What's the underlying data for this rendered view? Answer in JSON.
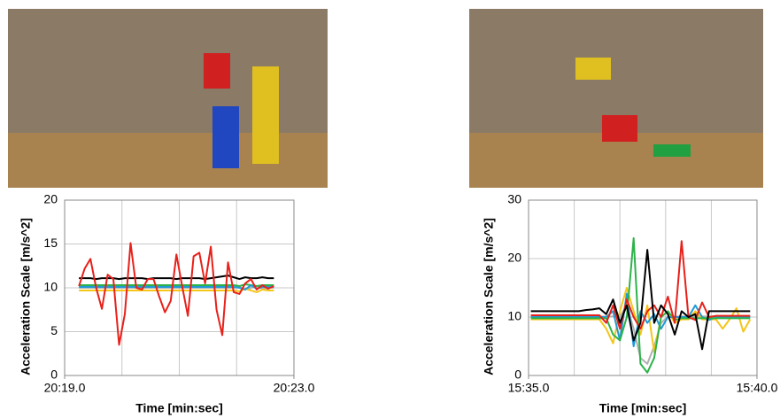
{
  "chart_data": [
    {
      "type": "line",
      "x_label": "Time [min:sec]",
      "y_label": "Acceleration Scale [m/s^2]",
      "x": [
        0.25,
        0.35,
        0.45,
        0.55,
        0.65,
        0.75,
        0.85,
        0.95,
        1.05,
        1.15,
        1.25,
        1.35,
        1.45,
        1.55,
        1.65,
        1.75,
        1.85,
        1.95,
        2.05,
        2.15,
        2.25,
        2.35,
        2.45,
        2.55,
        2.65,
        2.75,
        2.85,
        2.95,
        3.05,
        3.15,
        3.25,
        3.35,
        3.45,
        3.55,
        3.65
      ],
      "xlim": [
        0,
        4
      ],
      "xticks": [
        {
          "value": 0,
          "label": "20:19.0"
        },
        {
          "value": 4,
          "label": "20:23.0"
        }
      ],
      "xgrid": [
        1,
        2,
        3
      ],
      "ylim": [
        0,
        20
      ],
      "yticks": [
        0,
        5,
        10,
        15,
        20
      ],
      "grid": true,
      "series": [
        {
          "color": "#000000",
          "values": [
            11.1,
            11.1,
            11.1,
            11.0,
            11.1,
            11.1,
            11.1,
            11.0,
            11.1,
            11.1,
            11.1,
            11.1,
            11.0,
            11.1,
            11.1,
            11.1,
            11.1,
            11.0,
            11.1,
            11.1,
            11.1,
            11.1,
            11.0,
            11.1,
            11.2,
            11.3,
            11.4,
            11.2,
            11.0,
            11.2,
            11.1,
            11.1,
            11.2,
            11.1,
            11.1
          ]
        },
        {
          "color": "#b0b0b0",
          "values": [
            10.0,
            10.0,
            10.0,
            10.0,
            10.0,
            10.0,
            10.0,
            10.0,
            10.0,
            10.0,
            10.0,
            10.0,
            10.0,
            10.0,
            10.0,
            10.0,
            10.0,
            10.0,
            10.0,
            10.0,
            10.0,
            10.0,
            10.0,
            10.0,
            10.0,
            10.0,
            10.0,
            10.0,
            10.1,
            9.8,
            10.0,
            10.2,
            9.9,
            10.0,
            10.0
          ]
        },
        {
          "color": "#f5c518",
          "values": [
            9.7,
            9.7,
            9.7,
            9.7,
            9.7,
            9.7,
            9.7,
            9.7,
            9.7,
            9.7,
            9.7,
            9.7,
            9.7,
            9.7,
            9.7,
            9.7,
            9.7,
            9.7,
            9.7,
            9.7,
            9.7,
            9.7,
            9.7,
            9.7,
            9.7,
            9.7,
            9.7,
            9.7,
            9.6,
            9.9,
            9.7,
            9.5,
            9.8,
            9.7,
            9.7
          ]
        },
        {
          "color": "#2db24a",
          "values": [
            10.3,
            10.3,
            10.3,
            10.3,
            10.3,
            10.3,
            10.3,
            10.3,
            10.3,
            10.3,
            10.3,
            10.3,
            10.3,
            10.3,
            10.3,
            10.3,
            10.3,
            10.3,
            10.3,
            10.3,
            10.3,
            10.3,
            10.3,
            10.3,
            10.3,
            10.3,
            10.3,
            10.3,
            10.2,
            10.4,
            10.3,
            10.2,
            10.3,
            10.3,
            10.3
          ]
        },
        {
          "color": "#1f9ad6",
          "values": [
            10.1,
            10.1,
            10.1,
            10.1,
            10.1,
            10.1,
            10.1,
            10.1,
            10.1,
            10.1,
            10.1,
            10.1,
            10.1,
            10.1,
            10.1,
            10.1,
            10.1,
            10.1,
            10.1,
            10.1,
            10.1,
            10.1,
            10.1,
            10.1,
            10.1,
            10.1,
            10.1,
            10.1,
            10.0,
            9.8,
            10.3,
            9.9,
            10.1,
            10.1,
            10.1
          ]
        },
        {
          "color": "#e8201a",
          "values": [
            10.2,
            12.2,
            13.3,
            10.0,
            7.6,
            11.5,
            11.0,
            3.5,
            7.0,
            15.1,
            10.0,
            9.8,
            11.0,
            11.0,
            9.0,
            7.2,
            8.5,
            13.8,
            10.2,
            6.8,
            13.6,
            14.0,
            10.5,
            14.7,
            7.5,
            4.6,
            12.9,
            9.5,
            9.3,
            10.5,
            11.0,
            9.8,
            10.3,
            9.9,
            10.2
          ]
        }
      ]
    },
    {
      "type": "line",
      "x_label": "Time [min:sec]",
      "y_label": "Acceleration Scale [m/s^2]",
      "x": [
        0.05,
        0.2,
        0.35,
        0.5,
        0.65,
        0.8,
        0.95,
        1.1,
        1.25,
        1.4,
        1.55,
        1.7,
        1.85,
        2.0,
        2.15,
        2.3,
        2.45,
        2.6,
        2.75,
        2.9,
        3.05,
        3.2,
        3.35,
        3.5,
        3.65,
        3.8,
        3.95,
        4.1,
        4.25,
        4.4,
        4.55,
        4.7,
        4.85
      ],
      "xlim": [
        0,
        5
      ],
      "xticks": [
        {
          "value": 0,
          "label": "15:35.0"
        },
        {
          "value": 5,
          "label": "15:40.0"
        }
      ],
      "xgrid": [
        1,
        2,
        3,
        4
      ],
      "ylim": [
        0,
        30
      ],
      "yticks": [
        0,
        10,
        20,
        30
      ],
      "grid": true,
      "series": [
        {
          "color": "#b0b0b0",
          "values": [
            10.1,
            10.1,
            10.1,
            10.1,
            10.1,
            10.1,
            10.1,
            10.1,
            10.1,
            10.1,
            10.1,
            10.1,
            10.1,
            10.1,
            12,
            8,
            3,
            2,
            5,
            9,
            10.1,
            10.1,
            10.1,
            10.1,
            10.1,
            10.1,
            10.1,
            10.1,
            10.1,
            10.1,
            10.1,
            10.1,
            10.1
          ]
        },
        {
          "color": "#f5c518",
          "values": [
            9.6,
            9.6,
            9.6,
            9.6,
            9.6,
            9.6,
            9.6,
            9.6,
            9.6,
            9.6,
            9.6,
            8,
            5.5,
            11,
            15,
            11,
            7,
            12,
            4,
            10,
            11,
            9,
            9.6,
            9.6,
            11,
            9.6,
            9.6,
            9.6,
            8,
            9.6,
            11.5,
            7.5,
            9.6
          ]
        },
        {
          "color": "#1f9ad6",
          "values": [
            10,
            10,
            10,
            10,
            10,
            10,
            10,
            10,
            10,
            10,
            10,
            10,
            11,
            6,
            14,
            5,
            11,
            9,
            10.5,
            8,
            10,
            10,
            10,
            10,
            12,
            10,
            9.5,
            10,
            10,
            10,
            10,
            10,
            10
          ]
        },
        {
          "color": "#2db24a",
          "values": [
            9.8,
            9.8,
            9.8,
            9.8,
            9.8,
            9.8,
            9.8,
            9.8,
            9.8,
            9.8,
            9.8,
            9.8,
            7,
            6,
            10,
            23.5,
            2,
            0.5,
            3,
            10,
            11,
            9.5,
            9.8,
            9.8,
            9.8,
            9.8,
            9.8,
            9.8,
            9.8,
            9.8,
            9.8,
            9.8,
            9.8
          ]
        },
        {
          "color": "#e8201a",
          "values": [
            10.3,
            10.3,
            10.3,
            10.3,
            10.3,
            10.3,
            10.3,
            10.3,
            10.3,
            10.3,
            10.3,
            9,
            12,
            8,
            13,
            10,
            8,
            11,
            12,
            10,
            13.5,
            9,
            23,
            10,
            9.5,
            12.5,
            10,
            10.2,
            10.2,
            10.2,
            10.2,
            10.2,
            10.2
          ]
        },
        {
          "color": "#000000",
          "values": [
            11,
            11,
            11,
            11,
            11,
            11,
            11,
            11,
            11.2,
            11.3,
            11.5,
            10.5,
            13,
            9,
            12,
            6,
            9,
            21.5,
            9,
            12,
            10.5,
            7,
            11,
            10,
            10.5,
            4.5,
            11,
            11,
            11,
            11,
            11,
            11,
            11
          ]
        }
      ]
    }
  ]
}
